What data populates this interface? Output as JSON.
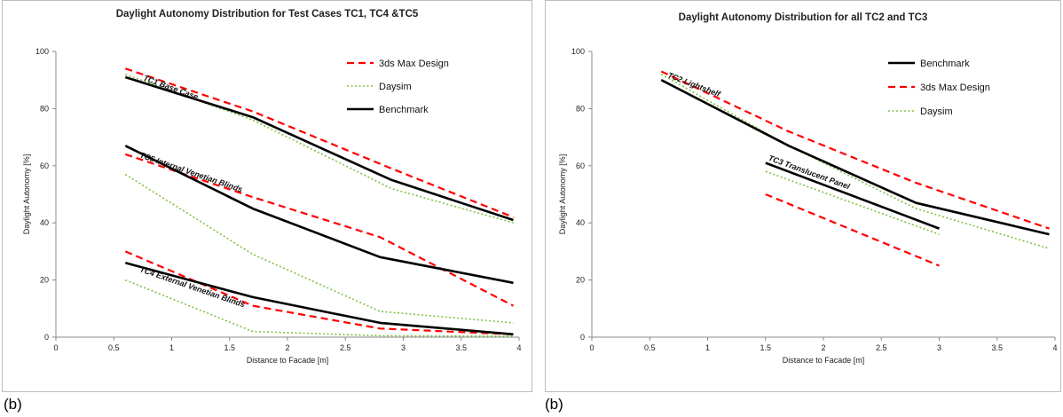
{
  "captions": [
    "(b)",
    "(b)"
  ],
  "chart_data": [
    {
      "type": "line",
      "title": "Daylight Autonomy Distribution for Test Cases TC1, TC4 &TC5",
      "xlabel": "Distance to Facade [m]",
      "ylabel": "Daylight Autonomy [%]",
      "xlim": [
        0,
        4
      ],
      "ylim": [
        0,
        100
      ],
      "xticks": [
        "0",
        "0.5",
        "1",
        "1.5",
        "2",
        "2.5",
        "3",
        "3.5",
        "4"
      ],
      "yticks": [
        "0",
        "20",
        "40",
        "60",
        "80",
        "100"
      ],
      "grid": false,
      "legend_position": "top-right",
      "legend": [
        {
          "name": "3ds Max Design",
          "color": "#ff0000",
          "style": "dashed"
        },
        {
          "name": "Daysim",
          "color": "#7fc241",
          "style": "dotted"
        },
        {
          "name": "Benchmark",
          "color": "#000000",
          "style": "solid"
        }
      ],
      "annotations": [
        {
          "text": "TC1  Base Case",
          "x": 0.75,
          "y": 90,
          "rotate": 20
        },
        {
          "text": "TC5  Internal Venetian Blinds",
          "x": 0.72,
          "y": 63,
          "rotate": 19
        },
        {
          "text": "TC4 External Venetian Blinds",
          "x": 0.72,
          "y": 23,
          "rotate": 19
        }
      ],
      "series": [
        {
          "group": "TC1",
          "legend": "3ds Max Design",
          "x": [
            0.6,
            1.7,
            2.9,
            3.95
          ],
          "y": [
            94,
            79,
            59,
            42
          ]
        },
        {
          "group": "TC1",
          "legend": "Daysim",
          "x": [
            0.6,
            1.7,
            2.9,
            3.95
          ],
          "y": [
            92,
            76,
            52,
            40
          ]
        },
        {
          "group": "TC1",
          "legend": "Benchmark",
          "x": [
            0.6,
            1.7,
            2.9,
            3.95
          ],
          "y": [
            91,
            77,
            55,
            41
          ]
        },
        {
          "group": "TC5",
          "legend": "3ds Max Design",
          "x": [
            0.6,
            1.7,
            2.8,
            3.95
          ],
          "y": [
            64,
            49,
            35,
            11
          ]
        },
        {
          "group": "TC5",
          "legend": "Daysim",
          "x": [
            0.6,
            1.7,
            2.8,
            3.95
          ],
          "y": [
            57,
            29,
            9,
            5
          ]
        },
        {
          "group": "TC5",
          "legend": "Benchmark",
          "x": [
            0.6,
            1.7,
            2.8,
            3.95
          ],
          "y": [
            67,
            45,
            28,
            19
          ]
        },
        {
          "group": "TC4",
          "legend": "3ds Max Design",
          "x": [
            0.6,
            1.7,
            2.8,
            3.95
          ],
          "y": [
            30,
            11,
            3,
            1
          ]
        },
        {
          "group": "TC4",
          "legend": "Daysim",
          "x": [
            0.6,
            1.7,
            2.8,
            3.95
          ],
          "y": [
            20,
            2,
            0.5,
            0.3
          ]
        },
        {
          "group": "TC4",
          "legend": "Benchmark",
          "x": [
            0.6,
            1.7,
            2.8,
            3.95
          ],
          "y": [
            26,
            14,
            5,
            1
          ]
        }
      ]
    },
    {
      "type": "line",
      "title": "Daylight Autonomy Distribution for all TC2 and TC3",
      "xlabel": "Distance to Facade [m]",
      "ylabel": "Daylight Autonomy [%]",
      "xlim": [
        0,
        4
      ],
      "ylim": [
        0,
        100
      ],
      "xticks": [
        "0",
        "0.5",
        "1",
        "1.5",
        "2",
        "2.5",
        "3",
        "3.5",
        "4"
      ],
      "yticks": [
        "0",
        "20",
        "40",
        "60",
        "80",
        "100"
      ],
      "grid": false,
      "legend_position": "top-right",
      "legend": [
        {
          "name": "Benchmark",
          "color": "#000000",
          "style": "solid"
        },
        {
          "name": "3ds Max Design",
          "color": "#ff0000",
          "style": "dashed"
        },
        {
          "name": "Daysim",
          "color": "#7fc241",
          "style": "dotted"
        }
      ],
      "annotations": [
        {
          "text": "TC2 Lightshelf",
          "x": 0.65,
          "y": 91,
          "rotate": 21
        },
        {
          "text": "TC3 Translucent Panel",
          "x": 1.52,
          "y": 62,
          "rotate": 20
        }
      ],
      "series": [
        {
          "group": "TC2",
          "legend": "3ds Max Design",
          "x": [
            0.6,
            1.7,
            2.8,
            3.95
          ],
          "y": [
            93,
            72,
            54,
            38
          ]
        },
        {
          "group": "TC2",
          "legend": "Daysim",
          "x": [
            0.6,
            1.7,
            2.8,
            3.95
          ],
          "y": [
            92,
            67,
            45,
            31
          ]
        },
        {
          "group": "TC2",
          "legend": "Benchmark",
          "x": [
            0.6,
            1.7,
            2.8,
            3.95
          ],
          "y": [
            90,
            67,
            47,
            36
          ]
        },
        {
          "group": "TC3",
          "legend": "Benchmark",
          "x": [
            1.5,
            3.0
          ],
          "y": [
            61,
            38
          ]
        },
        {
          "group": "TC3",
          "legend": "Daysim",
          "x": [
            1.5,
            3.0
          ],
          "y": [
            58,
            36
          ]
        },
        {
          "group": "TC3",
          "legend": "3ds Max Design",
          "x": [
            1.5,
            3.0
          ],
          "y": [
            50,
            25
          ]
        }
      ]
    }
  ]
}
